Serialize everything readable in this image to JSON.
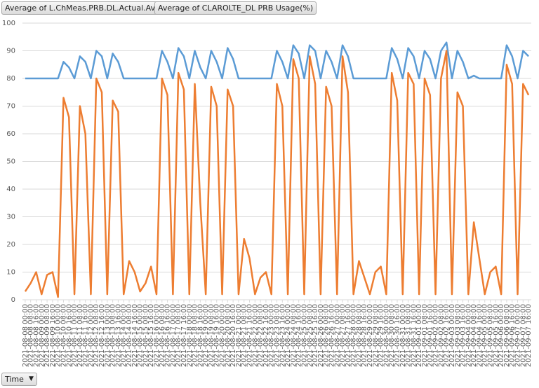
{
  "chart_data": {
    "type": "line",
    "x_label": "Time",
    "categories": [
      "2021-08-08 00:00",
      "2021-08-08 08:00",
      "2021-08-08 16:00",
      "2021-08-09 00:00",
      "2021-08-09 08:00",
      "2021-08-09 16:00",
      "2021-08-10 00:00",
      "2021-08-10 08:00",
      "2021-08-10 16:00",
      "2021-08-11 00:00",
      "2021-08-11 08:00",
      "2021-08-11 16:00",
      "2021-08-12 00:00",
      "2021-08-12 08:00",
      "2021-08-12 16:00",
      "2021-08-13 00:00",
      "2021-08-13 08:00",
      "2021-08-13 16:00",
      "2021-08-14 00:00",
      "2021-08-14 08:00",
      "2021-08-14 16:00",
      "2021-08-15 00:00",
      "2021-08-15 08:00",
      "2021-08-15 16:00",
      "2021-08-16 00:00",
      "2021-08-16 08:00",
      "2021-08-16 16:00",
      "2021-08-17 00:00",
      "2021-08-17 08:00",
      "2021-08-17 16:00",
      "2021-08-18 00:00",
      "2021-08-18 08:00",
      "2021-08-18 16:00",
      "2021-08-19 00:00",
      "2021-08-19 08:00",
      "2021-08-19 16:00",
      "2021-08-20 00:00",
      "2021-08-20 08:00",
      "2021-08-20 16:00",
      "2021-08-21 00:00",
      "2021-08-21 08:00",
      "2021-08-21 16:00",
      "2021-08-22 00:00",
      "2021-08-22 08:00",
      "2021-08-22 16:00",
      "2021-08-23 00:00",
      "2021-08-23 08:00",
      "2021-08-23 16:00",
      "2021-08-24 00:00",
      "2021-08-24 08:00",
      "2021-08-24 16:00",
      "2021-08-25 00:00",
      "2021-08-25 08:00",
      "2021-08-25 16:00",
      "2021-08-26 00:00",
      "2021-08-26 08:00",
      "2021-08-26 16:00",
      "2021-08-27 00:00",
      "2021-08-27 08:00",
      "2021-08-27 16:00",
      "2021-08-28 00:00",
      "2021-08-28 08:00",
      "2021-08-28 16:00",
      "2021-08-29 00:00",
      "2021-08-29 08:00",
      "2021-08-29 16:00",
      "2021-08-30 00:00",
      "2021-08-30 08:00",
      "2021-08-30 16:00",
      "2021-08-31 00:00",
      "2021-08-31 08:00",
      "2021-08-31 16:00",
      "2021-09-01 00:00",
      "2021-09-01 08:00",
      "2021-09-01 16:00",
      "2021-09-02 00:00",
      "2021-09-02 08:00",
      "2021-09-02 16:00",
      "2021-09-03 00:00",
      "2021-09-03 08:00",
      "2021-09-03 16:00",
      "2021-09-04 00:00",
      "2021-09-04 08:00",
      "2021-09-04 16:00",
      "2021-09-05 00:00",
      "2021-09-05 08:00",
      "2021-09-05 16:00",
      "2021-09-06 00:00",
      "2021-09-06 08:00",
      "2021-09-06 16:00",
      "2021-09-07 00:00",
      "2021-09-07 08:00",
      "2021-09-07 16:00"
    ],
    "series": [
      {
        "name": "Average of L.ChMeas.PRB.DL.Actual.Avail",
        "color": "#5b9bd5",
        "values": [
          80,
          80,
          80,
          80,
          80,
          80,
          80,
          86,
          84,
          80,
          88,
          86,
          80,
          90,
          88,
          80,
          89,
          86,
          80,
          80,
          80,
          80,
          80,
          80,
          80,
          90,
          86,
          80,
          91,
          88,
          80,
          90,
          84,
          80,
          90,
          86,
          80,
          91,
          87,
          80,
          80,
          80,
          80,
          80,
          80,
          80,
          90,
          86,
          80,
          92,
          89,
          80,
          92,
          90,
          80,
          90,
          86,
          80,
          92,
          88,
          80,
          80,
          80,
          80,
          80,
          80,
          80,
          91,
          87,
          80,
          91,
          88,
          80,
          90,
          87,
          80,
          90,
          93,
          80,
          90,
          86,
          80,
          81,
          80,
          80,
          80,
          80,
          80,
          92,
          88,
          80,
          90,
          88
        ]
      },
      {
        "name": "Average of CLAROLTE_DL PRB Usage(%)",
        "color": "#ed7d31",
        "values": [
          3,
          6,
          10,
          2,
          9,
          10,
          1,
          73,
          66,
          2,
          70,
          60,
          2,
          80,
          75,
          2,
          72,
          68,
          2,
          14,
          10,
          3,
          6,
          12,
          2,
          80,
          74,
          2,
          82,
          76,
          2,
          78,
          35,
          2,
          77,
          70,
          2,
          76,
          70,
          2,
          22,
          15,
          2,
          8,
          10,
          2,
          78,
          70,
          2,
          87,
          80,
          2,
          88,
          78,
          2,
          77,
          70,
          2,
          88,
          75,
          2,
          14,
          8,
          2,
          10,
          12,
          2,
          82,
          72,
          2,
          82,
          78,
          2,
          80,
          74,
          2,
          80,
          90,
          2,
          75,
          70,
          2,
          28,
          15,
          2,
          10,
          12,
          2,
          85,
          78,
          2,
          78,
          74
        ]
      }
    ],
    "ylim": [
      0,
      100
    ],
    "yticks": [
      0,
      10,
      20,
      30,
      40,
      50,
      60,
      70,
      80,
      90,
      100
    ],
    "grid": true
  }
}
